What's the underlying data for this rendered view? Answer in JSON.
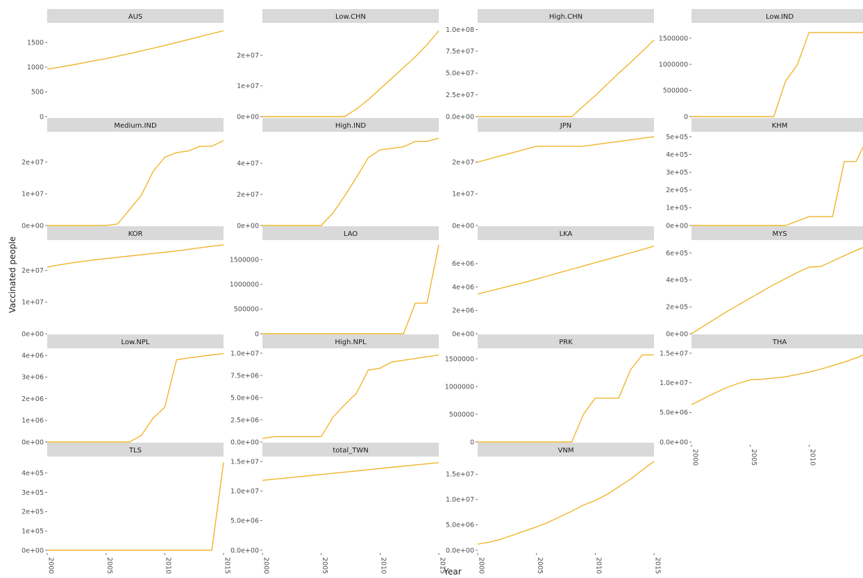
{
  "chart_data": {
    "type": "line",
    "xlabel": "Year",
    "ylabel": "Vaccinated people",
    "line_color": "#f0b429",
    "strip_color": "#d9d9d9",
    "xlim": [
      2000,
      2015
    ],
    "x_ticks": [
      "2000",
      "2005",
      "2010",
      "2015"
    ],
    "x": [
      2000,
      2001,
      2002,
      2003,
      2004,
      2005,
      2006,
      2007,
      2008,
      2009,
      2010,
      2011,
      2012,
      2013,
      2014,
      2015
    ],
    "panels": [
      {
        "title": "AUS",
        "ylim": [
          0,
          1800
        ],
        "y_ticks": [
          0,
          500,
          1000,
          1500
        ],
        "y_tick_labels": [
          "0",
          "500",
          "1000",
          "1500"
        ],
        "values": [
          960,
          1000,
          1040,
          1085,
          1130,
          1175,
          1225,
          1275,
          1330,
          1385,
          1440,
          1500,
          1560,
          1620,
          1680,
          1740
        ]
      },
      {
        "title": "Low.CHN",
        "ylim": [
          0,
          29000000
        ],
        "y_ticks": [
          0,
          10000000,
          20000000
        ],
        "y_tick_labels": [
          "0e+00",
          "1e+07",
          "2e+07"
        ],
        "values": [
          0,
          0,
          0,
          0,
          0,
          0,
          0,
          0,
          2500000,
          5500000,
          9000000,
          12500000,
          16000000,
          19500000,
          23500000,
          28000000
        ]
      },
      {
        "title": "High.CHN",
        "ylim": [
          0,
          102000000
        ],
        "y_ticks": [
          0,
          25000000,
          50000000,
          75000000,
          100000000
        ],
        "y_tick_labels": [
          "0.0e+00",
          "2.5e+07",
          "5.0e+07",
          "7.5e+07",
          "1.0e+08"
        ],
        "values": [
          0,
          0,
          0,
          0,
          0,
          0,
          0,
          0,
          0,
          12000000,
          24000000,
          37000000,
          50000000,
          62000000,
          75000000,
          88000000
        ]
      },
      {
        "title": "Low.IND",
        "ylim": [
          0,
          1700000
        ],
        "y_ticks": [
          0,
          500000,
          1000000,
          1500000
        ],
        "y_tick_labels": [
          "0",
          "500000",
          "1000000",
          "1500000"
        ],
        "values": [
          0,
          0,
          0,
          0,
          0,
          0,
          0,
          0,
          680000,
          990000,
          1610000,
          1610000,
          1610000,
          1610000,
          1610000,
          1610000
        ]
      },
      {
        "title": "Medium.IND",
        "ylim": [
          0,
          28000000
        ],
        "y_ticks": [
          0,
          10000000,
          20000000
        ],
        "y_tick_labels": [
          "0e+00",
          "1e+07",
          "2e+07"
        ],
        "values": [
          0,
          0,
          0,
          0,
          0,
          0,
          500000,
          5000000,
          9500000,
          17000000,
          21500000,
          23000000,
          23500000,
          25000000,
          25000000,
          26800000
        ]
      },
      {
        "title": "High.IND",
        "ylim": [
          0,
          57000000
        ],
        "y_ticks": [
          0,
          20000000,
          40000000
        ],
        "y_tick_labels": [
          "0e+00",
          "2e+07",
          "4e+07"
        ],
        "values": [
          0,
          0,
          0,
          0,
          0,
          0,
          8000000,
          19000000,
          31000000,
          43500000,
          48500000,
          49500000,
          50500000,
          54000000,
          54000000,
          56000000
        ]
      },
      {
        "title": "JPN",
        "ylim": [
          0,
          28000000
        ],
        "y_ticks": [
          0,
          10000000,
          20000000
        ],
        "y_tick_labels": [
          "0e+00",
          "1e+07",
          "2e+07"
        ],
        "values": [
          20000000,
          21000000,
          22000000,
          23000000,
          24000000,
          25000000,
          25000000,
          25000000,
          25000000,
          25000000,
          25500000,
          26000000,
          26500000,
          27000000,
          27500000,
          28000000
        ]
      },
      {
        "title": "KHM",
        "ylim": [
          0,
          500000
        ],
        "y_ticks": [
          0,
          100000,
          200000,
          300000,
          400000,
          500000
        ],
        "y_tick_labels": [
          "0e+00",
          "1e+05",
          "2e+05",
          "3e+05",
          "4e+05",
          "5e+05"
        ],
        "values": [
          0,
          0,
          0,
          0,
          0,
          0,
          0,
          0,
          0,
          25000,
          50000,
          50000,
          50000,
          360000,
          360000,
          500000
        ]
      },
      {
        "title": "KOR",
        "ylim": [
          0,
          28000000
        ],
        "y_ticks": [
          0,
          10000000,
          20000000
        ],
        "y_tick_labels": [
          "0e+00",
          "1e+07",
          "2e+07"
        ],
        "values": [
          21000000,
          21700000,
          22300000,
          22800000,
          23300000,
          23700000,
          24100000,
          24500000,
          24900000,
          25300000,
          25700000,
          26100000,
          26600000,
          27100000,
          27600000,
          28000000
        ]
      },
      {
        "title": "LAO",
        "ylim": [
          0,
          1800000
        ],
        "y_ticks": [
          0,
          500000,
          1000000,
          1500000
        ],
        "y_tick_labels": [
          "0",
          "500000",
          "1000000",
          "1500000"
        ],
        "values": [
          0,
          0,
          0,
          0,
          0,
          0,
          0,
          0,
          0,
          0,
          0,
          0,
          0,
          620000,
          620000,
          1800000
        ]
      },
      {
        "title": "LKA",
        "ylim": [
          0,
          7600000
        ],
        "y_ticks": [
          0,
          2000000,
          4000000,
          6000000
        ],
        "y_tick_labels": [
          "0e+00",
          "2e+06",
          "4e+06",
          "6e+06"
        ],
        "values": [
          3400000,
          3650000,
          3900000,
          4150000,
          4400000,
          4680000,
          4960000,
          5240000,
          5520000,
          5800000,
          6080000,
          6360000,
          6640000,
          6920000,
          7200000,
          7500000
        ]
      },
      {
        "title": "MYS",
        "ylim": [
          0,
          660000
        ],
        "y_ticks": [
          0,
          200000,
          400000,
          600000
        ],
        "y_tick_labels": [
          "0e+00",
          "2e+05",
          "4e+05",
          "6e+05"
        ],
        "values": [
          0,
          55000,
          110000,
          165000,
          215000,
          265000,
          315000,
          365000,
          410000,
          455000,
          495000,
          500000,
          540000,
          580000,
          620000,
          655000
        ]
      },
      {
        "title": "Low.NPL",
        "ylim": [
          0,
          4100000
        ],
        "y_ticks": [
          0,
          1000000,
          2000000,
          3000000,
          4000000
        ],
        "y_tick_labels": [
          "0e+00",
          "1e+06",
          "2e+06",
          "3e+06",
          "4e+06"
        ],
        "values": [
          0,
          0,
          0,
          0,
          0,
          0,
          0,
          0,
          300000,
          1100000,
          1600000,
          3800000,
          3880000,
          3950000,
          4020000,
          4080000
        ]
      },
      {
        "title": "High.NPL",
        "ylim": [
          0,
          10000000
        ],
        "y_ticks": [
          0,
          2500000,
          5000000,
          7500000,
          10000000
        ],
        "y_tick_labels": [
          "0.0e+00",
          "2.5e+06",
          "5.0e+06",
          "7.5e+06",
          "1.0e+07"
        ],
        "values": [
          400000,
          600000,
          600000,
          600000,
          600000,
          600000,
          2800000,
          4200000,
          5500000,
          8100000,
          8300000,
          9000000,
          9200000,
          9400000,
          9600000,
          9800000
        ]
      },
      {
        "title": "PRK",
        "ylim": [
          0,
          1600000
        ],
        "y_ticks": [
          0,
          500000,
          1000000,
          1500000
        ],
        "y_tick_labels": [
          "0",
          "500000",
          "1000000",
          "1500000"
        ],
        "values": [
          0,
          0,
          0,
          0,
          0,
          0,
          0,
          0,
          0,
          500000,
          790000,
          790000,
          790000,
          1300000,
          1570000,
          1570000
        ]
      },
      {
        "title": "THA",
        "ylim": [
          0,
          15000000
        ],
        "y_ticks": [
          0,
          5000000,
          10000000,
          15000000
        ],
        "y_tick_labels": [
          "0.0e+00",
          "5.0e+06",
          "1.0e+07",
          "1.5e+07"
        ],
        "values": [
          6300000,
          7300000,
          8300000,
          9200000,
          9900000,
          10500000,
          10600000,
          10800000,
          11000000,
          11400000,
          11800000,
          12300000,
          12900000,
          13500000,
          14200000,
          15000000
        ]
      },
      {
        "title": "TLS",
        "ylim": [
          0,
          460000
        ],
        "y_ticks": [
          0,
          100000,
          200000,
          300000,
          400000
        ],
        "y_tick_labels": [
          "0e+00",
          "1e+05",
          "2e+05",
          "3e+05",
          "4e+05"
        ],
        "values": [
          0,
          0,
          0,
          0,
          0,
          0,
          0,
          0,
          0,
          0,
          0,
          0,
          0,
          0,
          0,
          455000
        ]
      },
      {
        "title": "total_TWN",
        "ylim": [
          0,
          15000000
        ],
        "y_ticks": [
          0,
          5000000,
          10000000,
          15000000
        ],
        "y_tick_labels": [
          "0.0e+00",
          "5.0e+06",
          "1.0e+07",
          "1.5e+07"
        ],
        "values": [
          11800000,
          12000000,
          12200000,
          12400000,
          12600000,
          12800000,
          13000000,
          13200000,
          13400000,
          13600000,
          13800000,
          14000000,
          14200000,
          14400000,
          14600000,
          14800000
        ]
      },
      {
        "title": "VNM",
        "ylim": [
          0,
          17500000
        ],
        "y_ticks": [
          0,
          5000000,
          10000000,
          15000000
        ],
        "y_tick_labels": [
          "0.0e+00",
          "5.0e+06",
          "1.0e+07",
          "1.5e+07"
        ],
        "values": [
          1200000,
          1600000,
          2200000,
          3000000,
          3800000,
          4600000,
          5500000,
          6600000,
          7700000,
          8900000,
          9800000,
          11000000,
          12500000,
          14000000,
          15800000,
          17500000
        ]
      }
    ]
  }
}
